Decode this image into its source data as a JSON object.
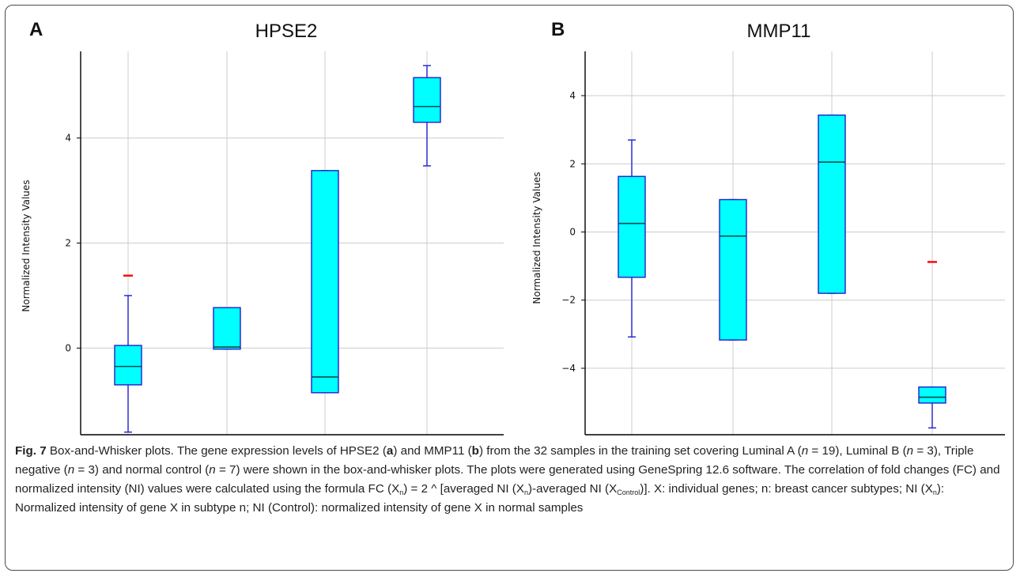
{
  "panels": [
    {
      "letter": "A",
      "title": "HPSE2",
      "ylabel": "Normalized Intensity Values"
    },
    {
      "letter": "B",
      "title": "MMP11",
      "ylabel": "Normalized Intensity Values"
    }
  ],
  "chart_data": [
    {
      "type": "box",
      "title": "HPSE2",
      "ylabel": "Normalized Intensity Values",
      "categories": [
        "Luminal A",
        "Luminal B",
        "Triple negative",
        "Normal"
      ],
      "ylim": [
        -1.65,
        5.65
      ],
      "yticks": [
        0,
        2,
        4
      ],
      "grid": true,
      "boxes": [
        {
          "category": "Luminal A",
          "min": -1.6,
          "q1": -0.7,
          "median": -0.35,
          "q3": 0.05,
          "max": 1.0,
          "outliers": [
            1.38
          ]
        },
        {
          "category": "Luminal B",
          "min": -0.02,
          "q1": -0.02,
          "median": 0.02,
          "q3": 0.77,
          "max": 0.77,
          "outliers": []
        },
        {
          "category": "Triple negative",
          "min": -0.85,
          "q1": -0.85,
          "median": -0.55,
          "q3": 3.38,
          "max": 3.38,
          "outliers": []
        },
        {
          "category": "Normal",
          "min": 3.47,
          "q1": 4.3,
          "median": 4.6,
          "q3": 5.15,
          "max": 5.38,
          "outliers": []
        }
      ],
      "colors": {
        "box_fill": "#00ffff",
        "box_stroke": "#1f1fcc",
        "median": "#004d4d",
        "outlier": "#ff0000",
        "grid": "#cccccc"
      }
    },
    {
      "type": "box",
      "title": "MMP11",
      "ylabel": "Normalized Intensity Values",
      "categories": [
        "Luminal A",
        "Luminal B",
        "Triple negative",
        "Normal"
      ],
      "ylim": [
        -5.95,
        5.3
      ],
      "yticks": [
        -4,
        -2,
        0,
        2,
        4
      ],
      "grid": true,
      "boxes": [
        {
          "category": "Luminal A",
          "min": -3.08,
          "q1": -1.33,
          "median": 0.25,
          "q3": 1.63,
          "max": 2.7,
          "outliers": []
        },
        {
          "category": "Luminal B",
          "min": -3.17,
          "q1": -3.17,
          "median": -0.12,
          "q3": 0.95,
          "max": 0.95,
          "outliers": []
        },
        {
          "category": "Triple negative",
          "min": -1.8,
          "q1": -1.8,
          "median": 2.05,
          "q3": 3.43,
          "max": 3.43,
          "outliers": []
        },
        {
          "category": "Normal",
          "min": -5.75,
          "q1": -5.02,
          "median": -4.85,
          "q3": -4.55,
          "max": -4.55,
          "outliers": [
            -0.88
          ]
        }
      ],
      "colors": {
        "box_fill": "#00ffff",
        "box_stroke": "#1f1fcc",
        "median": "#004d4d",
        "outlier": "#ff0000",
        "grid": "#cccccc"
      }
    }
  ],
  "caption": {
    "fig_label": "Fig. 7",
    "p1": " Box-and-Whisker plots. The gene expression levels of HPSE2 (",
    "a": "a",
    "p2": ") and MMP11 (",
    "b": "b",
    "p3": ") from the 32 samples in the training set covering Luminal A (",
    "n1": "n",
    "p4": " = 19), Luminal B (",
    "n2": "n",
    "p5": " = 3), Triple negative (",
    "n3": "n",
    "p6": " = 3) and normal control (",
    "n4": "n",
    "p7": " = 7) were shown in the box-and-whisker plots. The plots were generated using GeneSpring 12.6 software. The correlation of fold changes (FC) and normalized intensity (NI) values were calculated using the formula FC (X",
    "sub1": "n",
    "p8": ") = 2 ^ [averaged NI (X",
    "sub2": "n",
    "p9": ")-averaged NI (X",
    "sub3": "Control",
    "p10": ")]. X: individual genes; n: breast cancer subtypes; NI (X",
    "sub4": "n",
    "p11": "): Normalized intensity of gene X in subtype n; NI (Control): normalized intensity of gene X in normal samples"
  }
}
